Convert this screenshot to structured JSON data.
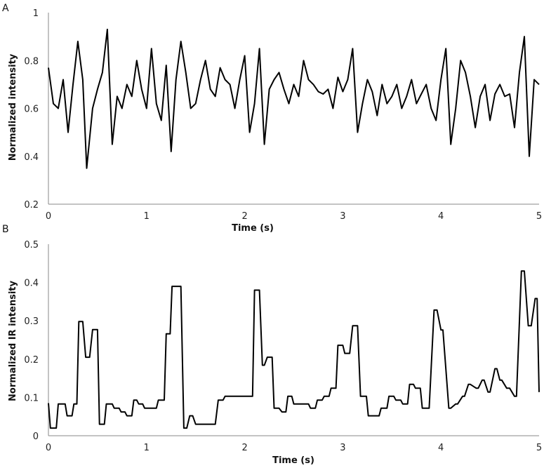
{
  "chart_data": [
    {
      "type": "line",
      "panel_label": "A",
      "title": "",
      "xlabel": "Time (s)",
      "ylabel": "Normalized intensity",
      "xlim": [
        0,
        5
      ],
      "ylim": [
        0.2,
        1
      ],
      "x_ticks": [
        "0",
        "1",
        "2",
        "3",
        "4",
        "5"
      ],
      "y_ticks": [
        "0.2",
        "0.4",
        "0.6",
        "0.8",
        "1"
      ],
      "grid": false,
      "legend": "none",
      "series": [
        {
          "x": [
            0,
            0.05,
            0.1,
            0.15,
            0.2,
            0.25,
            0.3,
            0.35,
            0.39,
            0.45,
            0.5,
            0.55,
            0.6,
            0.65,
            0.7,
            0.75,
            0.8,
            0.85,
            0.9,
            0.95,
            1.0,
            1.05,
            1.1,
            1.15,
            1.2,
            1.25,
            1.3,
            1.35,
            1.4,
            1.45,
            1.5,
            1.55,
            1.6,
            1.65,
            1.7,
            1.75,
            1.8,
            1.85,
            1.9,
            1.95,
            2.0,
            2.05,
            2.1,
            2.15,
            2.2,
            2.25,
            2.3,
            2.35,
            2.4,
            2.45,
            2.5,
            2.55,
            2.6,
            2.65,
            2.7,
            2.75,
            2.8,
            2.85,
            2.9,
            2.95,
            3.0,
            3.05,
            3.1,
            3.15,
            3.2,
            3.25,
            3.3,
            3.35,
            3.4,
            3.45,
            3.5,
            3.55,
            3.6,
            3.65,
            3.7,
            3.75,
            3.8,
            3.85,
            3.9,
            3.95,
            4.0,
            4.05,
            4.1,
            4.15,
            4.2,
            4.25,
            4.3,
            4.35,
            4.4,
            4.45,
            4.5,
            4.55,
            4.6,
            4.65,
            4.7,
            4.75,
            4.8,
            4.85,
            4.9,
            4.95,
            5.0
          ],
          "y": [
            0.77,
            0.62,
            0.6,
            0.72,
            0.5,
            0.7,
            0.88,
            0.72,
            0.35,
            0.6,
            0.68,
            0.75,
            0.93,
            0.45,
            0.65,
            0.6,
            0.7,
            0.65,
            0.8,
            0.68,
            0.6,
            0.85,
            0.62,
            0.55,
            0.78,
            0.42,
            0.72,
            0.88,
            0.75,
            0.6,
            0.62,
            0.72,
            0.8,
            0.68,
            0.65,
            0.77,
            0.72,
            0.7,
            0.6,
            0.72,
            0.82,
            0.5,
            0.62,
            0.85,
            0.45,
            0.68,
            0.72,
            0.75,
            0.68,
            0.62,
            0.7,
            0.65,
            0.8,
            0.72,
            0.7,
            0.67,
            0.66,
            0.68,
            0.6,
            0.73,
            0.67,
            0.72,
            0.85,
            0.5,
            0.62,
            0.72,
            0.67,
            0.57,
            0.7,
            0.62,
            0.65,
            0.7,
            0.6,
            0.65,
            0.72,
            0.62,
            0.66,
            0.7,
            0.6,
            0.55,
            0.72,
            0.85,
            0.45,
            0.6,
            0.8,
            0.75,
            0.65,
            0.52,
            0.65,
            0.7,
            0.55,
            0.66,
            0.7,
            0.65,
            0.66,
            0.52,
            0.75,
            0.9,
            0.4,
            0.72,
            0.7
          ]
        }
      ]
    },
    {
      "type": "line",
      "panel_label": "B",
      "title": "",
      "xlabel": "Time (s)",
      "ylabel": "Normalized IR intensity",
      "xlim": [
        0,
        5
      ],
      "ylim": [
        0,
        0.5
      ],
      "x_ticks": [
        "0",
        "1",
        "2",
        "3",
        "4",
        "5"
      ],
      "y_ticks": [
        "0",
        "0.1",
        "0.2",
        "0.3",
        "0.4",
        "0.5"
      ],
      "grid": false,
      "legend": "none",
      "series": [
        {
          "x": [
            0,
            0.02,
            0.08,
            0.1,
            0.17,
            0.19,
            0.24,
            0.26,
            0.29,
            0.31,
            0.35,
            0.38,
            0.42,
            0.45,
            0.5,
            0.52,
            0.57,
            0.59,
            0.65,
            0.67,
            0.72,
            0.74,
            0.78,
            0.8,
            0.85,
            0.87,
            0.9,
            0.92,
            0.96,
            0.98,
            1.04,
            1.06,
            1.1,
            1.12,
            1.18,
            1.2,
            1.24,
            1.26,
            1.29,
            1.31,
            1.35,
            1.38,
            1.41,
            1.44,
            1.47,
            1.5,
            1.55,
            1.58,
            1.7,
            1.73,
            1.78,
            1.8,
            2.0,
            2.08,
            2.1,
            2.15,
            2.18,
            2.2,
            2.23,
            2.28,
            2.3,
            2.35,
            2.38,
            2.42,
            2.44,
            2.48,
            2.5,
            2.6,
            2.62,
            2.65,
            2.67,
            2.72,
            2.74,
            2.79,
            2.81,
            2.86,
            2.88,
            2.93,
            2.95,
            3.0,
            3.02,
            3.07,
            3.1,
            3.15,
            3.18,
            3.24,
            3.26,
            3.37,
            3.39,
            3.45,
            3.47,
            3.52,
            3.54,
            3.59,
            3.61,
            3.66,
            3.68,
            3.72,
            3.74,
            3.79,
            3.81,
            3.86,
            3.88,
            3.93,
            3.96,
            4.0,
            4.02,
            4.08,
            4.1,
            4.15,
            4.17,
            4.22,
            4.24,
            4.28,
            4.3,
            4.36,
            4.38,
            4.42,
            4.44,
            4.48,
            4.5,
            4.55,
            4.57,
            4.6,
            4.62,
            4.67,
            4.7,
            4.75,
            4.77,
            4.82,
            4.85,
            4.89,
            4.92,
            4.96,
            4.98,
            5.0
          ],
          "y": [
            0.085,
            0.02,
            0.02,
            0.083,
            0.083,
            0.052,
            0.052,
            0.083,
            0.083,
            0.298,
            0.298,
            0.205,
            0.205,
            0.277,
            0.277,
            0.03,
            0.03,
            0.083,
            0.083,
            0.072,
            0.072,
            0.062,
            0.062,
            0.052,
            0.052,
            0.093,
            0.093,
            0.083,
            0.083,
            0.072,
            0.072,
            0.072,
            0.072,
            0.093,
            0.093,
            0.266,
            0.266,
            0.39,
            0.39,
            0.39,
            0.39,
            0.02,
            0.02,
            0.052,
            0.052,
            0.03,
            0.03,
            0.03,
            0.03,
            0.093,
            0.093,
            0.103,
            0.103,
            0.103,
            0.38,
            0.38,
            0.184,
            0.184,
            0.205,
            0.205,
            0.072,
            0.072,
            0.062,
            0.062,
            0.103,
            0.103,
            0.083,
            0.083,
            0.083,
            0.083,
            0.072,
            0.072,
            0.093,
            0.093,
            0.103,
            0.103,
            0.124,
            0.124,
            0.236,
            0.236,
            0.215,
            0.215,
            0.287,
            0.287,
            0.103,
            0.103,
            0.052,
            0.052,
            0.072,
            0.072,
            0.103,
            0.103,
            0.093,
            0.093,
            0.083,
            0.083,
            0.134,
            0.134,
            0.124,
            0.124,
            0.072,
            0.072,
            0.072,
            0.328,
            0.328,
            0.276,
            0.276,
            0.072,
            0.072,
            0.083,
            0.083,
            0.103,
            0.103,
            0.134,
            0.134,
            0.124,
            0.124,
            0.145,
            0.145,
            0.114,
            0.114,
            0.175,
            0.175,
            0.145,
            0.145,
            0.124,
            0.124,
            0.103,
            0.103,
            0.43,
            0.43,
            0.287,
            0.287,
            0.358,
            0.358,
            0.114
          ]
        }
      ]
    }
  ]
}
